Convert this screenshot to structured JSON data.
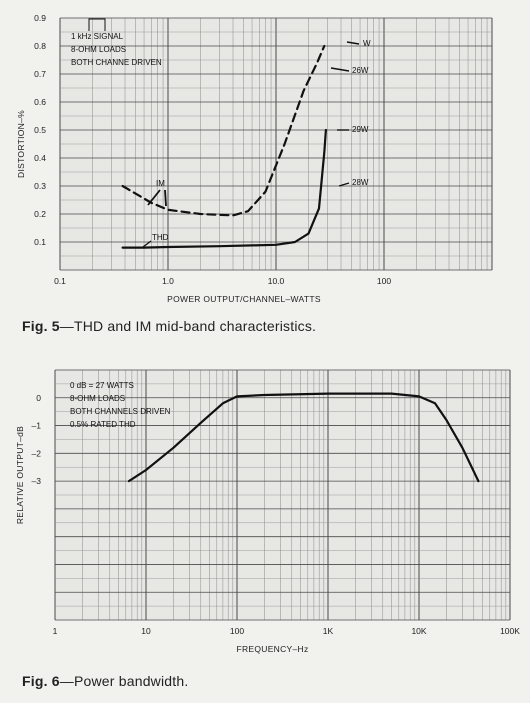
{
  "chart_data": [
    {
      "type": "line",
      "title": "",
      "xlabel": "POWER OUTPUT/CHANNEL–WATTS",
      "ylabel": "DISTORTION–%",
      "xscale": "log",
      "xlim": [
        0.1,
        1000
      ],
      "ylim": [
        0,
        0.9
      ],
      "x_tick_labels": [
        "0.1",
        "1.0",
        "10.0",
        "100"
      ],
      "x_ticks": [
        0.1,
        1,
        10,
        100
      ],
      "y_tick_labels": [
        "0.1",
        "0.2",
        "0.3",
        "0.4",
        "0.5",
        "0.6",
        "0.7",
        "0.8",
        "0.9"
      ],
      "y_ticks": [
        0.1,
        0.2,
        0.3,
        0.4,
        0.5,
        0.6,
        0.7,
        0.8,
        0.9
      ],
      "grid": true,
      "annotations": {
        "legend_lines": [
          "1 kHz SIGNAL",
          "8-OHM LOADS",
          "BOTH CHANNE   DRIVEN"
        ],
        "im_label": "IM",
        "thd_label": "THD",
        "point_labels": [
          "W",
          "26W",
          "29W",
          "28W"
        ]
      },
      "series": [
        {
          "name": "IM",
          "style": "dashed",
          "x": [
            0.38,
            0.7,
            1.0,
            2.0,
            4.0,
            5.5,
            8.0,
            12.0,
            18.0,
            24.0,
            28.0
          ],
          "y": [
            0.3,
            0.24,
            0.215,
            0.2,
            0.195,
            0.21,
            0.28,
            0.45,
            0.64,
            0.74,
            0.8
          ]
        },
        {
          "name": "THD",
          "style": "solid",
          "x": [
            0.38,
            0.6,
            1.0,
            3.0,
            6.0,
            10.0,
            15.0,
            20.0,
            25.0,
            28.0,
            29.0
          ],
          "y": [
            0.08,
            0.08,
            0.082,
            0.085,
            0.088,
            0.09,
            0.1,
            0.13,
            0.22,
            0.42,
            0.5
          ]
        }
      ]
    },
    {
      "type": "line",
      "title": "",
      "xlabel": "FREQUENCY–Hz",
      "ylabel": "RELATIVE OUTPUT–dB",
      "xscale": "log",
      "xlim": [
        1,
        100000
      ],
      "ylim": [
        -8,
        1
      ],
      "x_tick_labels": [
        "1",
        "10",
        "100",
        "1K",
        "10K",
        "100K"
      ],
      "x_ticks": [
        1,
        10,
        100,
        1000,
        10000,
        100000
      ],
      "y_tick_labels": [
        "0",
        "–1",
        "–2",
        "–3"
      ],
      "y_ticks": [
        0,
        -1,
        -2,
        -3
      ],
      "grid": true,
      "annotations": {
        "legend_lines": [
          "0 dB = 27 WATTS",
          "8-OHM LOADS",
          "BOTH CHANNELS DRIVEN",
          "0.5% RATED THD"
        ]
      },
      "series": [
        {
          "name": "",
          "style": "solid",
          "x": [
            6.5,
            10,
            20,
            40,
            70,
            100,
            200,
            1000,
            5000,
            10000,
            15000,
            20000,
            30000,
            45000
          ],
          "y": [
            -3.0,
            -2.6,
            -1.8,
            -0.9,
            -0.2,
            0.05,
            0.1,
            0.15,
            0.15,
            0.05,
            -0.2,
            -0.8,
            -1.8,
            -3.0
          ]
        }
      ]
    }
  ],
  "fig5_caption": {
    "label": "Fig. 5",
    "text": "—THD and IM mid-band characteristics."
  },
  "fig6_caption": {
    "label": "Fig. 6",
    "text": "—Power bandwidth."
  },
  "colors": {
    "grid_dark": "#4a4a4a",
    "grid_light": "#8a8a8a",
    "plot_bg": "#e7e7e4",
    "curve": "#111111"
  }
}
